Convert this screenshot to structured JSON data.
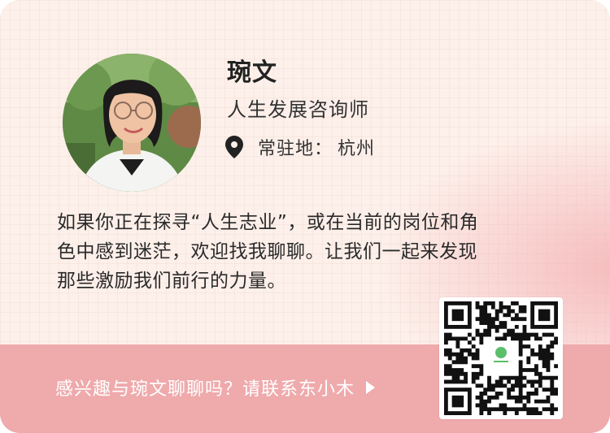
{
  "profile": {
    "name": "琬文",
    "title": "人生发展咨询师",
    "location_label": "常驻地：",
    "location_city": "杭州"
  },
  "description": {
    "lines": [
      "如果你正在探寻“人生志业”，或在当前的岗位和角",
      "色中感到迷茫，欢迎找我聊聊。让我们一起来发现",
      "那些激励我们前行的力量。"
    ]
  },
  "cta": {
    "text": "感兴趣与琬文聊聊吗？请联系东小木"
  },
  "icons": {
    "location": "location-pin-icon",
    "cta": "play-triangle-icon"
  },
  "colors": {
    "card_bg": "#fdf0ea",
    "cta_bar": "#efaaac",
    "qr_logo": "#5bbf6a"
  }
}
